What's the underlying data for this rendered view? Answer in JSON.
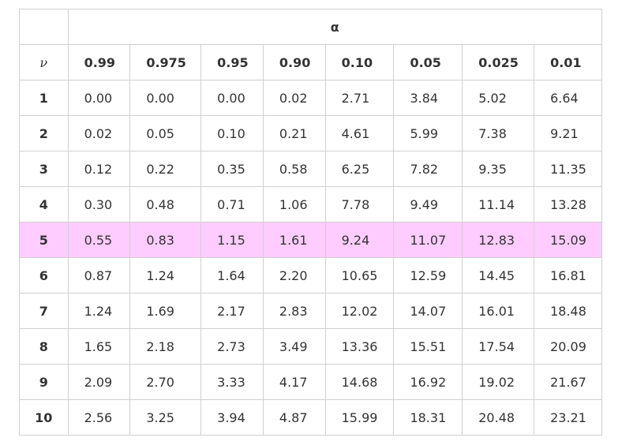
{
  "table": {
    "alpha_label": "α",
    "nu_label": "ν",
    "levels": [
      "0.99",
      "0.975",
      "0.95",
      "0.90",
      "0.10",
      "0.05",
      "0.025",
      "0.01"
    ],
    "highlight_color": "#ffccff",
    "highlight_row": "5",
    "rows": [
      {
        "nu": "1",
        "values": [
          "0.00",
          "0.00",
          "0.00",
          "0.02",
          "2.71",
          "3.84",
          "5.02",
          "6.64"
        ]
      },
      {
        "nu": "2",
        "values": [
          "0.02",
          "0.05",
          "0.10",
          "0.21",
          "4.61",
          "5.99",
          "7.38",
          "9.21"
        ]
      },
      {
        "nu": "3",
        "values": [
          "0.12",
          "0.22",
          "0.35",
          "0.58",
          "6.25",
          "7.82",
          "9.35",
          "11.35"
        ]
      },
      {
        "nu": "4",
        "values": [
          "0.30",
          "0.48",
          "0.71",
          "1.06",
          "7.78",
          "9.49",
          "11.14",
          "13.28"
        ]
      },
      {
        "nu": "5",
        "values": [
          "0.55",
          "0.83",
          "1.15",
          "1.61",
          "9.24",
          "11.07",
          "12.83",
          "15.09"
        ]
      },
      {
        "nu": "6",
        "values": [
          "0.87",
          "1.24",
          "1.64",
          "2.20",
          "10.65",
          "12.59",
          "14.45",
          "16.81"
        ]
      },
      {
        "nu": "7",
        "values": [
          "1.24",
          "1.69",
          "2.17",
          "2.83",
          "12.02",
          "14.07",
          "16.01",
          "18.48"
        ]
      },
      {
        "nu": "8",
        "values": [
          "1.65",
          "2.18",
          "2.73",
          "3.49",
          "13.36",
          "15.51",
          "17.54",
          "20.09"
        ]
      },
      {
        "nu": "9",
        "values": [
          "2.09",
          "2.70",
          "3.33",
          "4.17",
          "14.68",
          "16.92",
          "19.02",
          "21.67"
        ]
      },
      {
        "nu": "10",
        "values": [
          "2.56",
          "3.25",
          "3.94",
          "4.87",
          "15.99",
          "18.31",
          "20.48",
          "23.21"
        ]
      }
    ]
  }
}
